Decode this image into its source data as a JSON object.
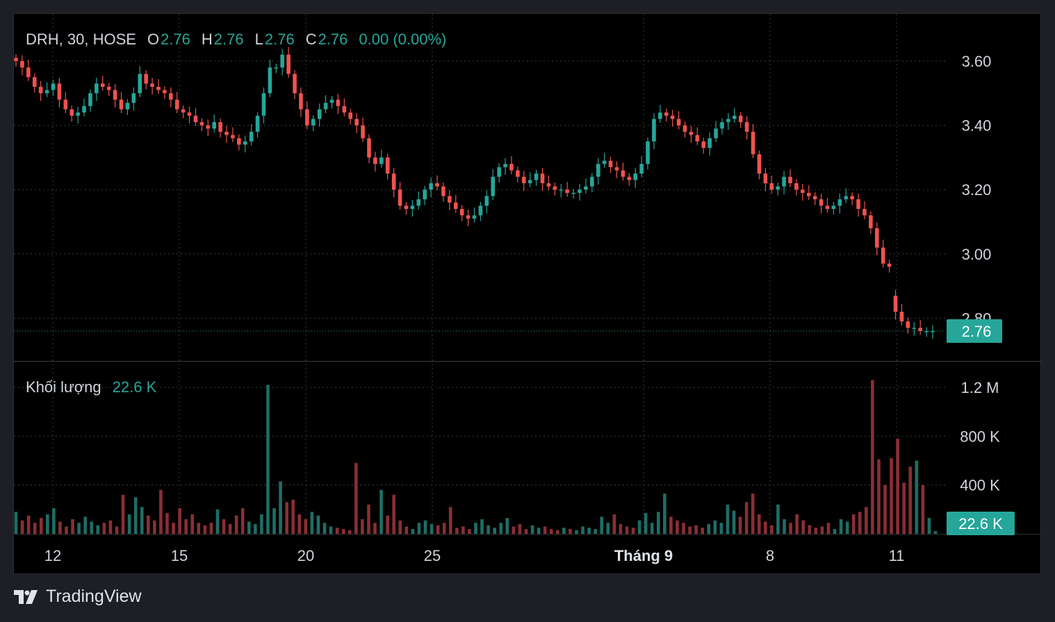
{
  "legend": {
    "symbol": "DRH, 30, HOSE",
    "o_label": "O",
    "o_value": "2.76",
    "h_label": "H",
    "h_value": "2.76",
    "l_label": "L",
    "l_value": "2.76",
    "c_label": "C",
    "c_value": "2.76",
    "change": "0.00 (0.00%)"
  },
  "volume_legend": {
    "label": "Khối lượng",
    "value": "22.6 K"
  },
  "branding": {
    "name": "TradingView"
  },
  "colors": {
    "up": "#26a69a",
    "down": "#ef5350",
    "vol_up": "#1d6e66",
    "vol_down": "#8a2f33",
    "background": "#000000",
    "grid": "#3a3d45",
    "text": "#d1d4dc"
  },
  "chart_data": [
    {
      "type": "candlestick",
      "title": "DRH, 30, HOSE",
      "interval": "30 min",
      "y_ticks": [
        "3.60",
        "3.40",
        "3.20",
        "3.00",
        "2.80"
      ],
      "ylim": [
        2.69,
        3.69
      ],
      "last_price": "2.76",
      "x_ticks": [
        "12",
        "15",
        "20",
        "25",
        "Tháng 9",
        "8",
        "11"
      ],
      "grid": true,
      "ohlc_close_path": [
        3.6,
        3.58,
        3.55,
        3.52,
        3.5,
        3.51,
        3.53,
        3.48,
        3.45,
        3.43,
        3.44,
        3.46,
        3.5,
        3.53,
        3.52,
        3.51,
        3.48,
        3.45,
        3.47,
        3.5,
        3.56,
        3.53,
        3.52,
        3.51,
        3.5,
        3.48,
        3.45,
        3.44,
        3.43,
        3.41,
        3.4,
        3.39,
        3.41,
        3.38,
        3.37,
        3.36,
        3.34,
        3.35,
        3.38,
        3.43,
        3.5,
        3.58,
        3.58,
        3.62,
        3.56,
        3.5,
        3.45,
        3.4,
        3.42,
        3.45,
        3.47,
        3.48,
        3.46,
        3.44,
        3.42,
        3.4,
        3.36,
        3.3,
        3.28,
        3.3,
        3.25,
        3.2,
        3.15,
        3.14,
        3.15,
        3.17,
        3.2,
        3.22,
        3.21,
        3.18,
        3.16,
        3.14,
        3.12,
        3.11,
        3.12,
        3.15,
        3.18,
        3.24,
        3.27,
        3.28,
        3.26,
        3.24,
        3.22,
        3.23,
        3.25,
        3.22,
        3.21,
        3.2,
        3.2,
        3.19,
        3.19,
        3.2,
        3.21,
        3.24,
        3.28,
        3.29,
        3.27,
        3.26,
        3.24,
        3.23,
        3.25,
        3.28,
        3.35,
        3.42,
        3.44,
        3.43,
        3.42,
        3.4,
        3.38,
        3.37,
        3.35,
        3.33,
        3.36,
        3.39,
        3.41,
        3.42,
        3.43,
        3.41,
        3.38,
        3.31,
        3.25,
        3.22,
        3.2,
        3.21,
        3.24,
        3.22,
        3.2,
        3.19,
        3.18,
        3.17,
        3.15,
        3.14,
        3.15,
        3.17,
        3.18,
        3.17,
        3.14,
        3.12,
        3.08,
        3.02,
        2.97,
        2.96,
        2.82,
        2.79,
        2.77,
        2.77,
        2.76,
        2.76,
        2.76
      ],
      "last_candle": {
        "open": 2.76,
        "high": 2.76,
        "low": 2.76,
        "close": 2.76
      }
    },
    {
      "type": "bar",
      "title": "Khối lượng",
      "y_ticks": [
        "1.2 M",
        "800 K",
        "400 K"
      ],
      "ylim": [
        0,
        1260000
      ],
      "last_value": "22.6 K",
      "volume_path": [
        180000,
        110000,
        150000,
        90000,
        130000,
        160000,
        210000,
        100000,
        60000,
        120000,
        90000,
        140000,
        100000,
        70000,
        90000,
        110000,
        60000,
        320000,
        160000,
        300000,
        220000,
        150000,
        110000,
        360000,
        170000,
        90000,
        210000,
        120000,
        160000,
        90000,
        70000,
        90000,
        200000,
        120000,
        80000,
        150000,
        210000,
        100000,
        80000,
        160000,
        1220000,
        210000,
        430000,
        260000,
        280000,
        160000,
        120000,
        180000,
        150000,
        90000,
        60000,
        50000,
        40000,
        30000,
        580000,
        120000,
        240000,
        90000,
        360000,
        150000,
        320000,
        110000,
        60000,
        40000,
        90000,
        110000,
        80000,
        70000,
        90000,
        220000,
        50000,
        60000,
        40000,
        90000,
        120000,
        70000,
        50000,
        90000,
        130000,
        60000,
        80000,
        40000,
        70000,
        50000,
        60000,
        40000,
        30000,
        50000,
        40000,
        30000,
        60000,
        50000,
        40000,
        140000,
        90000,
        160000,
        80000,
        60000,
        50000,
        110000,
        170000,
        90000,
        180000,
        330000,
        140000,
        110000,
        90000,
        60000,
        70000,
        50000,
        80000,
        110000,
        90000,
        240000,
        190000,
        140000,
        260000,
        330000,
        160000,
        100000,
        70000,
        240000,
        120000,
        90000,
        160000,
        110000,
        70000,
        50000,
        60000,
        90000,
        40000,
        120000,
        100000,
        160000,
        180000,
        220000,
        1260000,
        610000,
        400000,
        620000,
        780000,
        420000,
        550000,
        600000,
        400000,
        130000,
        22600
      ]
    }
  ]
}
